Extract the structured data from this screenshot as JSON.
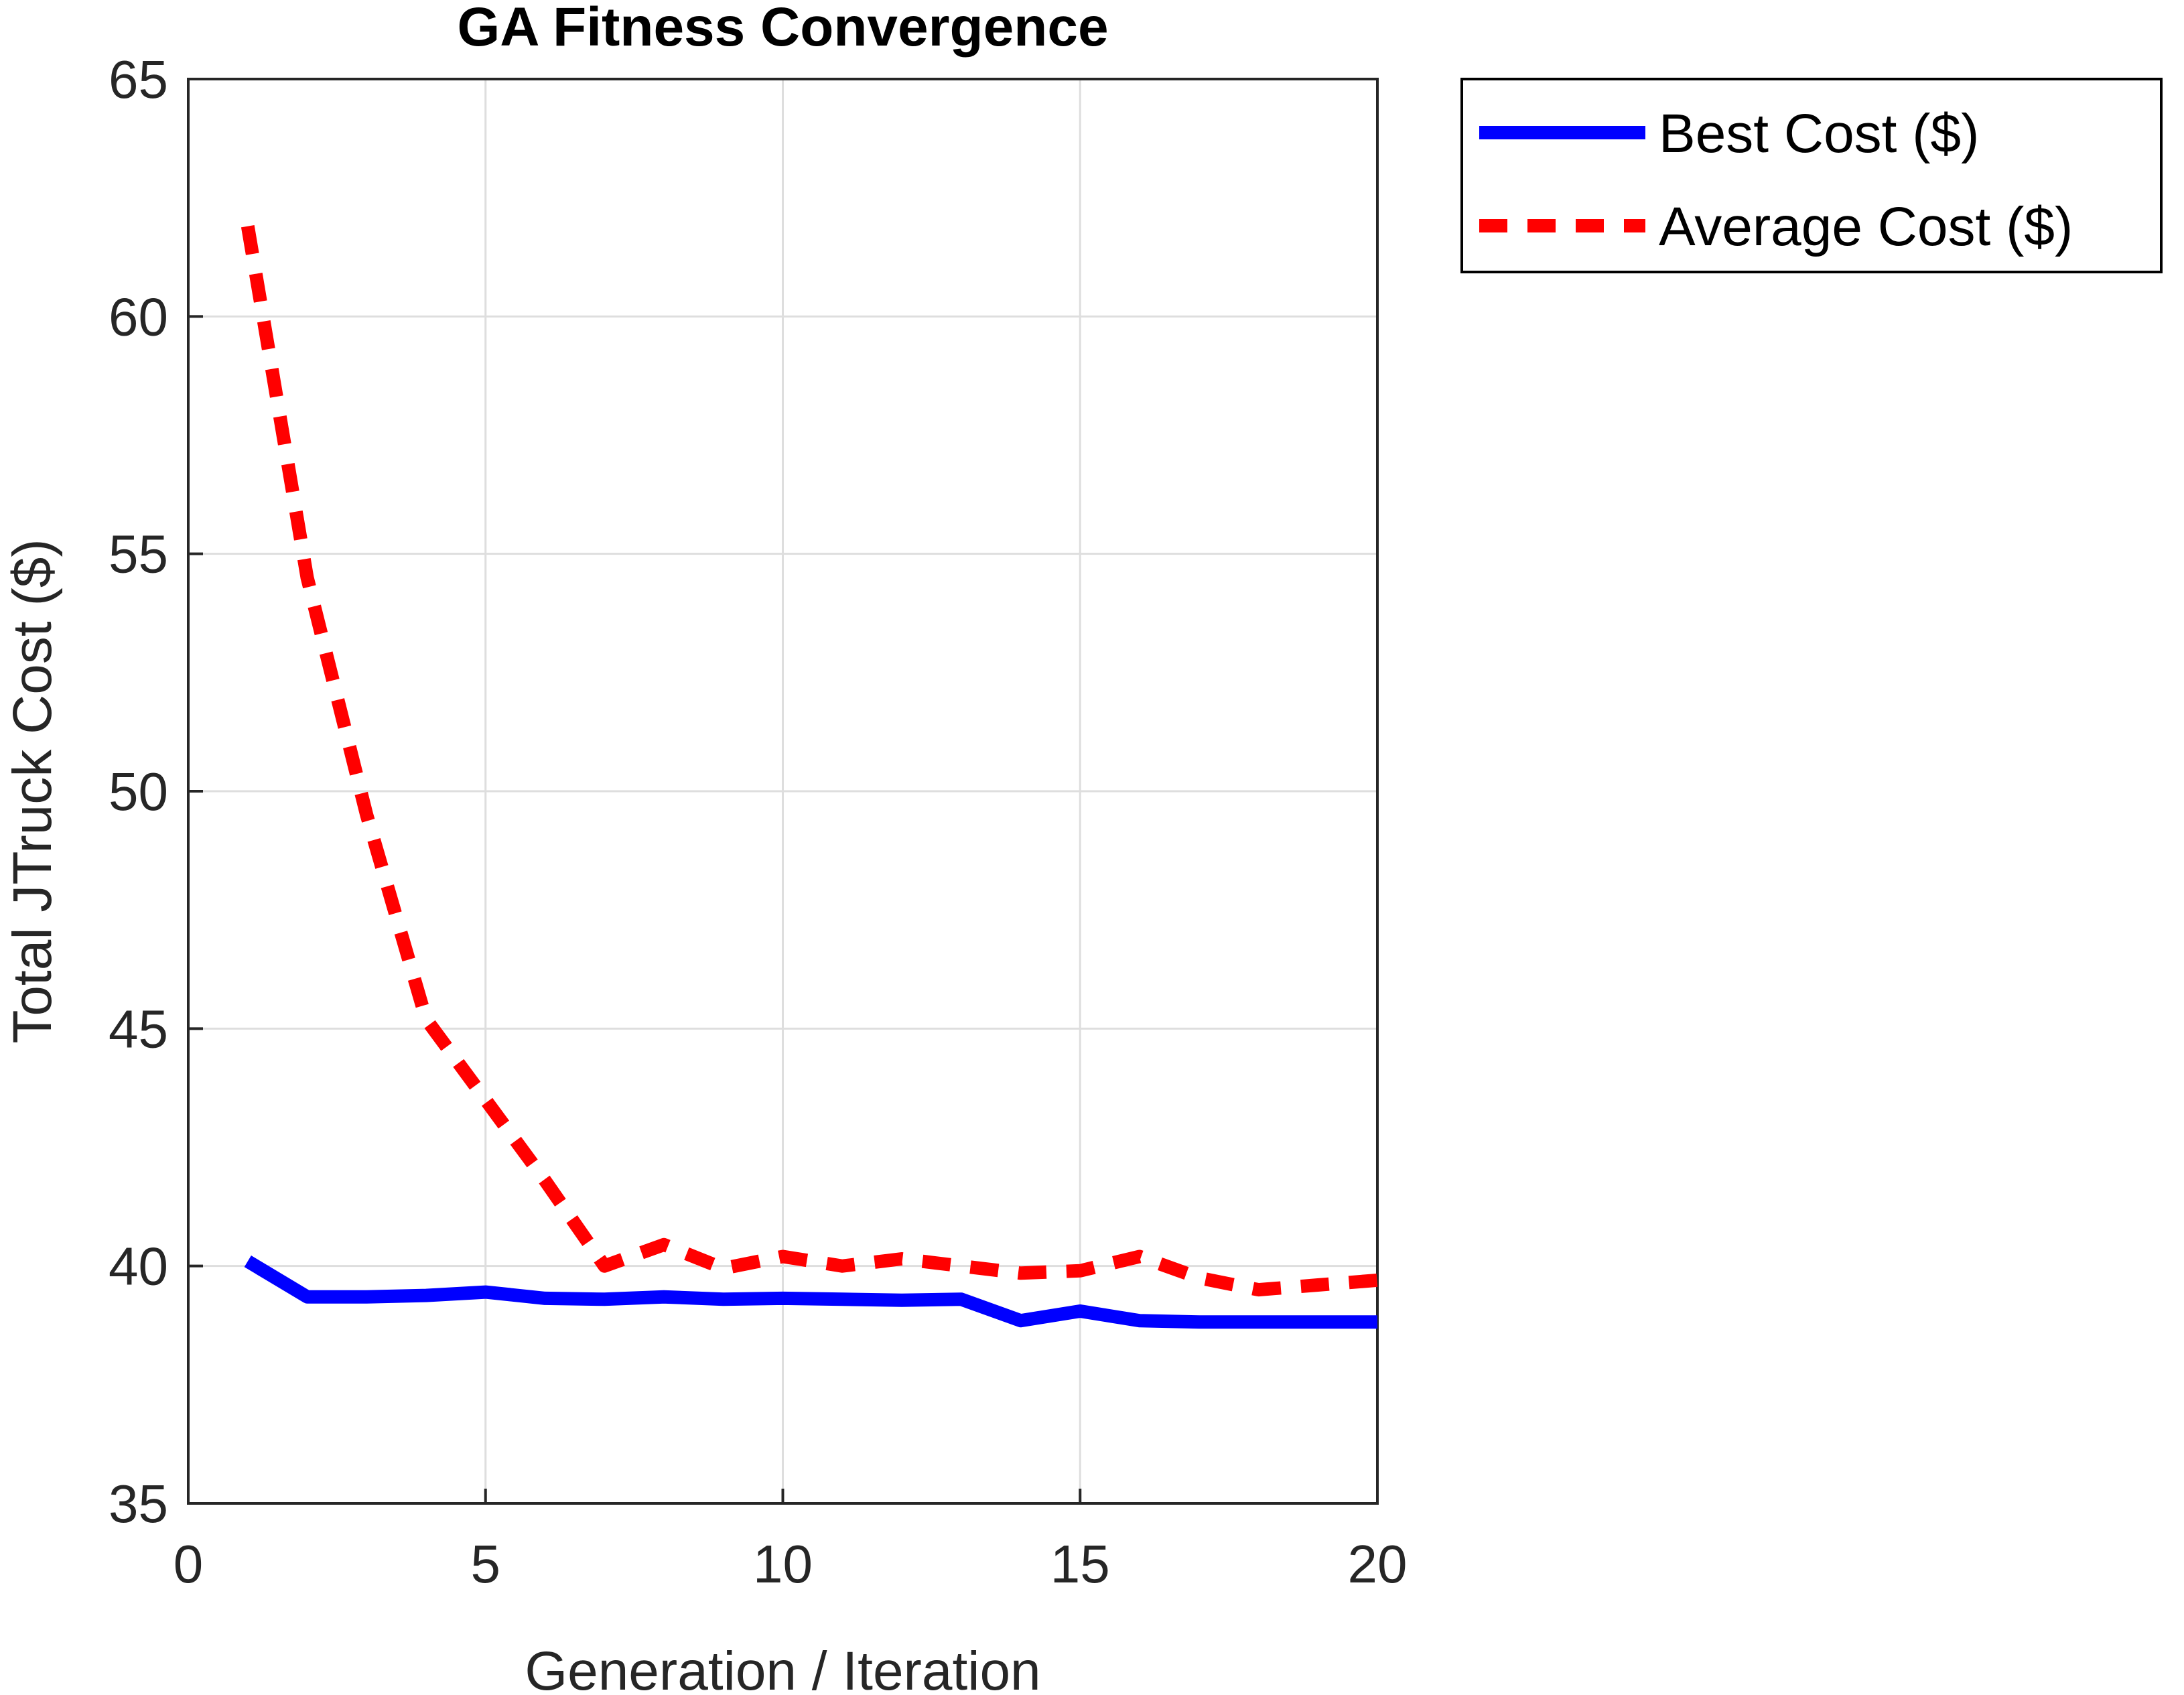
{
  "chart_data": {
    "type": "line",
    "title": "GA Fitness Convergence",
    "xlabel": "Generation / Iteration",
    "ylabel": "Total JTruck Cost ($)",
    "xlim": [
      0,
      20
    ],
    "ylim": [
      35,
      65
    ],
    "xticks": [
      "0",
      "5",
      "10",
      "15",
      "20"
    ],
    "yticks": [
      "35",
      "40",
      "45",
      "50",
      "55",
      "60",
      "65"
    ],
    "grid": true,
    "legend_position": "outside top-right",
    "x": [
      1,
      2,
      3,
      4,
      5,
      6,
      7,
      8,
      9,
      10,
      11,
      12,
      13,
      14,
      15,
      16,
      17,
      18,
      19,
      20
    ],
    "series": [
      {
        "name": "Best Cost ($)",
        "color": "#0000ff",
        "style": "solid",
        "values": [
          40.1,
          39.35,
          39.35,
          39.38,
          39.45,
          39.32,
          39.3,
          39.35,
          39.3,
          39.32,
          39.3,
          39.28,
          39.3,
          38.85,
          39.05,
          38.85,
          38.82,
          38.82,
          38.82,
          38.82
        ]
      },
      {
        "name": "Average Cost ($)",
        "color": "#ff0000",
        "style": "dashed",
        "values": [
          61.9,
          54.5,
          49.5,
          45.2,
          43.5,
          41.8,
          40.0,
          40.45,
          39.95,
          40.2,
          40.0,
          40.15,
          40.0,
          39.85,
          39.9,
          40.2,
          39.75,
          39.5,
          39.6,
          39.7
        ]
      }
    ]
  }
}
